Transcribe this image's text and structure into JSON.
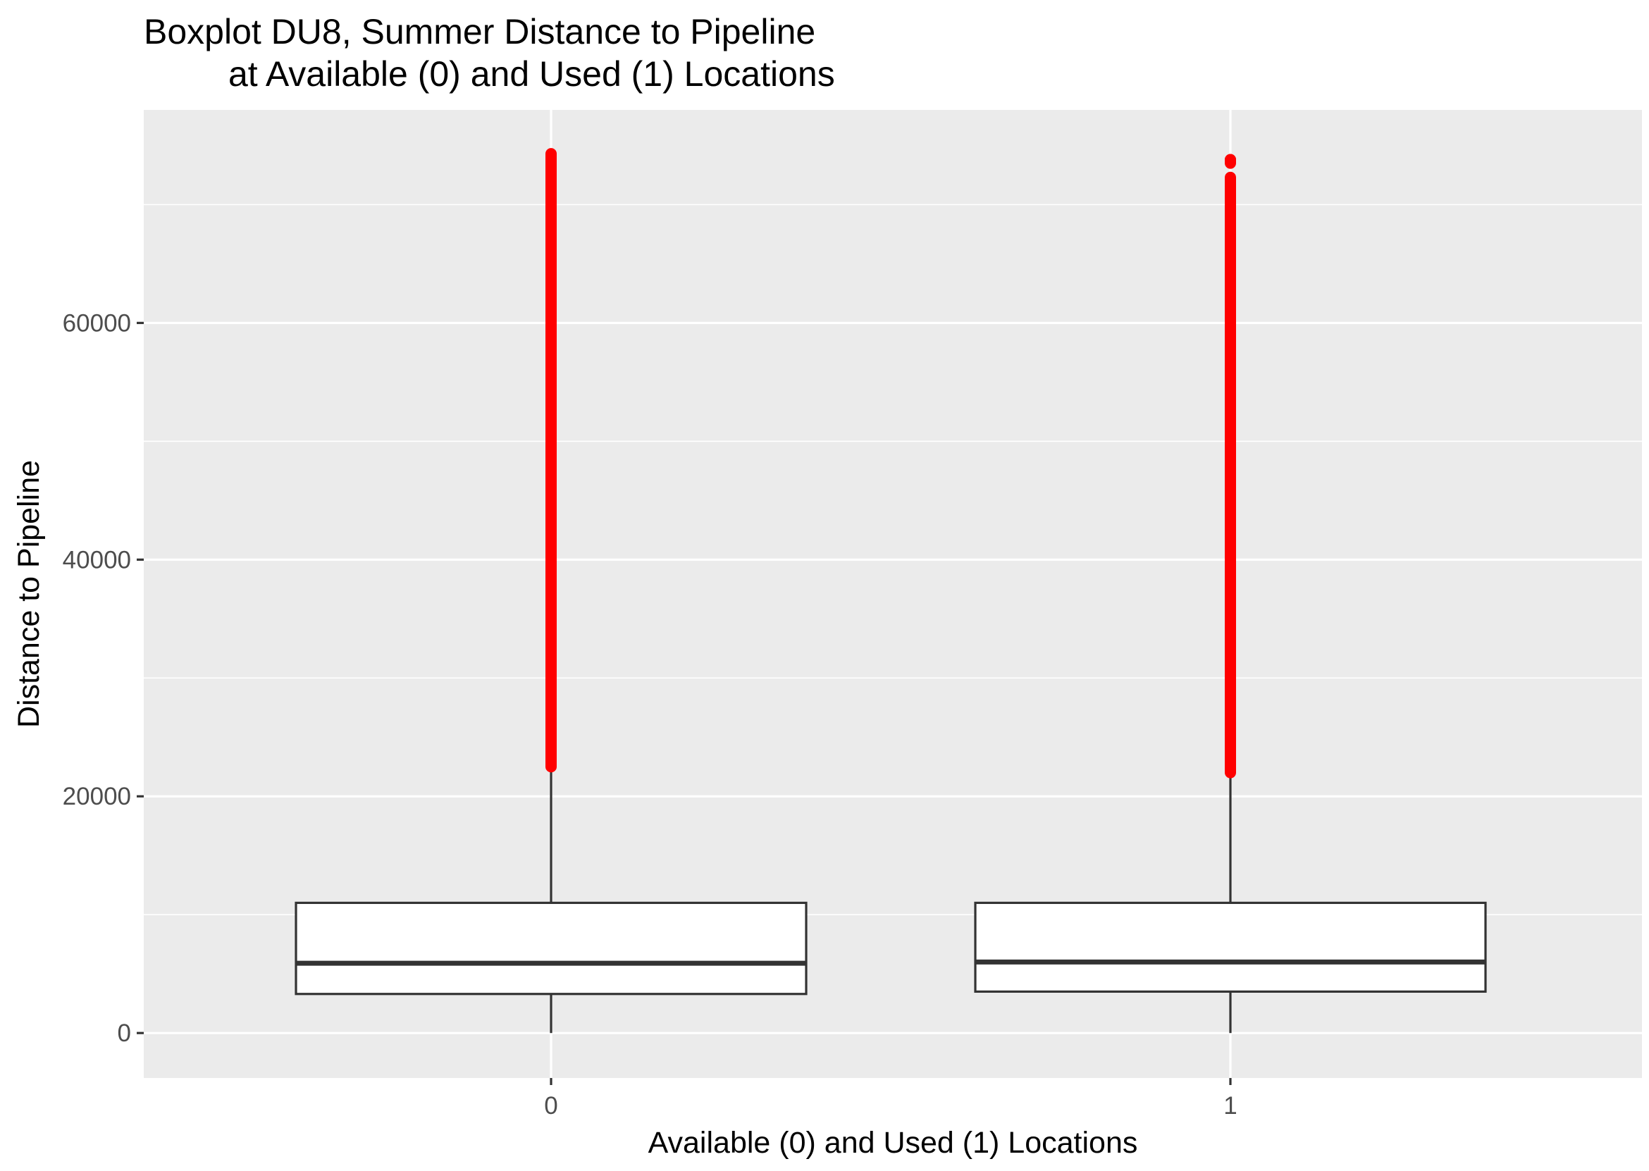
{
  "chart_data": {
    "type": "boxplot",
    "title": "Boxplot DU8, Summer Distance to Pipeline",
    "subtitle": "at Available (0) and Used (1) Locations",
    "xlabel": "Available (0) and Used (1) Locations",
    "ylabel": "Distance to Pipeline",
    "ylim": [
      -3800,
      78000
    ],
    "y_ticks": [
      0,
      20000,
      40000,
      60000
    ],
    "y_tick_labels": [
      "0",
      "20000",
      "40000",
      "60000"
    ],
    "grid": true,
    "categories": [
      "0",
      "1"
    ],
    "boxes": [
      {
        "category": "0",
        "whisker_low": 0,
        "q1": 3300,
        "median": 5900,
        "q3": 11000,
        "whisker_high": 22500,
        "outlier_min": 22500,
        "outlier_max": 74300,
        "outlier_gaps": []
      },
      {
        "category": "1",
        "whisker_low": 0,
        "q1": 3500,
        "median": 6000,
        "q3": 11000,
        "whisker_high": 22000,
        "outlier_min": 22000,
        "outlier_max": 73800,
        "outlier_gaps": [
          [
            72300,
            73500
          ]
        ]
      }
    ],
    "colors": {
      "panel": "#ebebeb",
      "grid": "#ffffff",
      "outlier": "#ff0000",
      "box_line": "#333333",
      "box_fill": "#ffffff"
    }
  }
}
